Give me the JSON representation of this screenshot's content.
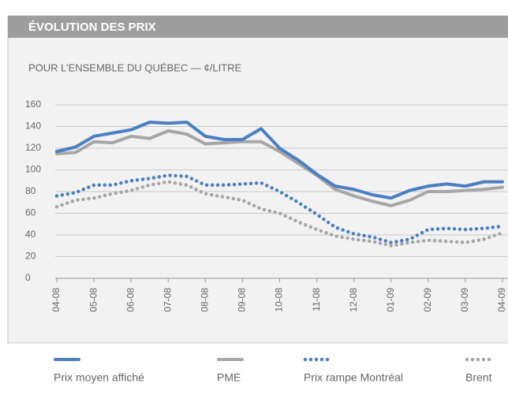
{
  "chart_data": {
    "type": "line",
    "title": "ÉVOLUTION DES PRIX",
    "subtitle": "POUR L’ENSEMBLE DU QUÉBEC — ¢/LITRE",
    "categories": [
      "04-08",
      null,
      "05-08",
      null,
      "06-08",
      null,
      "07-08",
      null,
      "08-08",
      null,
      "09-08",
      null,
      "10-08",
      null,
      "11-08",
      null,
      "12-08",
      null,
      "01-09",
      null,
      "02-09",
      null,
      "03-09",
      null,
      "04-09"
    ],
    "series": [
      {
        "name": "Prix moyen affiché",
        "color": "#4a7fc1",
        "style": "solid",
        "values": [
          117,
          121,
          131,
          134,
          137,
          144,
          143,
          144,
          131,
          128,
          128,
          138,
          120,
          109,
          96,
          85,
          82,
          77,
          74,
          81,
          85,
          87,
          85,
          89,
          89
        ]
      },
      {
        "name": "PME",
        "color": "#a6a6a6",
        "style": "solid",
        "values": [
          115,
          116,
          126,
          125,
          131,
          129,
          136,
          133,
          124,
          125,
          126,
          126,
          117,
          106,
          95,
          82,
          76,
          71,
          67,
          72,
          80,
          80,
          81,
          82,
          84
        ]
      },
      {
        "name": "Prix rampe Montréal",
        "color": "#4a7fc1",
        "style": "dotted",
        "values": [
          76,
          79,
          86,
          86,
          90,
          92,
          95,
          94,
          86,
          86,
          87,
          88,
          80,
          70,
          59,
          47,
          41,
          38,
          33,
          36,
          45,
          46,
          45,
          46,
          48
        ]
      },
      {
        "name": "Brent",
        "color": "#a6a6a6",
        "style": "dotted",
        "values": [
          66,
          72,
          74,
          78,
          81,
          86,
          89,
          86,
          78,
          75,
          72,
          64,
          60,
          52,
          45,
          39,
          36,
          34,
          30,
          33,
          35,
          34,
          33,
          36,
          42
        ]
      }
    ],
    "ylim": [
      0,
      160
    ],
    "yticks": [
      0,
      20,
      40,
      60,
      80,
      100,
      120,
      140,
      160
    ],
    "grid": true
  }
}
